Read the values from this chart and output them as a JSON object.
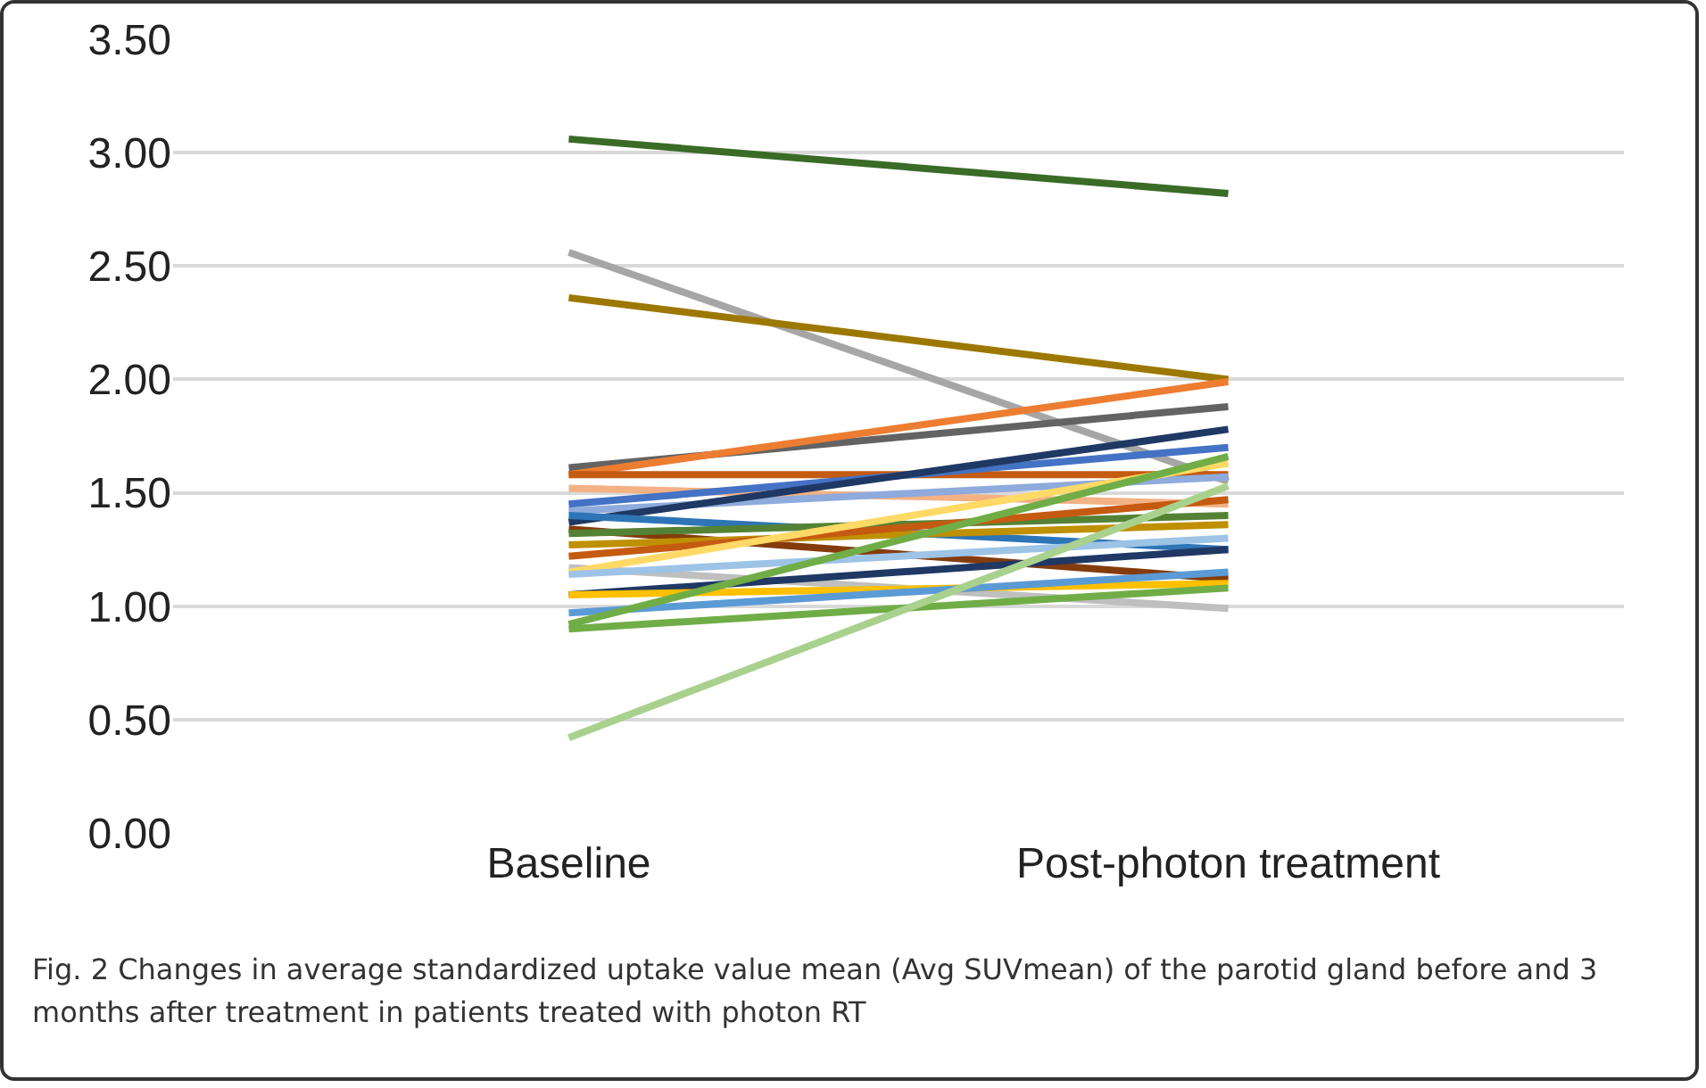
{
  "chart_data": {
    "type": "line",
    "categories": [
      "Baseline",
      "Post-photon treatment"
    ],
    "series": [
      {
        "color": "#3a6b27",
        "values": [
          3.06,
          2.82
        ]
      },
      {
        "color": "#a6a6a6",
        "values": [
          2.56,
          1.55
        ]
      },
      {
        "color": "#9c7800",
        "values": [
          2.36,
          2.0
        ]
      },
      {
        "color": "#636363",
        "values": [
          1.61,
          1.88
        ]
      },
      {
        "color": "#ed7d31",
        "values": [
          1.58,
          1.99
        ]
      },
      {
        "color": "#c55a11",
        "values": [
          1.58,
          1.58
        ]
      },
      {
        "color": "#f4b183",
        "values": [
          1.52,
          1.45
        ]
      },
      {
        "color": "#8faadc",
        "values": [
          1.42,
          1.57
        ]
      },
      {
        "color": "#4472c4",
        "values": [
          1.45,
          1.7
        ]
      },
      {
        "color": "#1f3864",
        "values": [
          1.37,
          1.78
        ]
      },
      {
        "color": "#2e75b6",
        "values": [
          1.4,
          1.25
        ]
      },
      {
        "color": "#843c0c",
        "values": [
          1.34,
          1.12
        ]
      },
      {
        "color": "#548235",
        "values": [
          1.32,
          1.4
        ]
      },
      {
        "color": "#bf9000",
        "values": [
          1.27,
          1.36
        ]
      },
      {
        "color": "#c55a11",
        "values": [
          1.22,
          1.47
        ]
      },
      {
        "color": "#bfbfbf",
        "values": [
          1.17,
          0.99
        ]
      },
      {
        "color": "#ffd966",
        "values": [
          1.15,
          1.63
        ]
      },
      {
        "color": "#9dc3e6",
        "values": [
          1.14,
          1.3
        ]
      },
      {
        "color": "#1f3864",
        "values": [
          1.05,
          1.25
        ]
      },
      {
        "color": "#ffc000",
        "values": [
          1.05,
          1.1
        ]
      },
      {
        "color": "#5b9bd5",
        "values": [
          0.97,
          1.15
        ]
      },
      {
        "color": "#70ad47",
        "values": [
          0.92,
          1.66
        ]
      },
      {
        "color": "#70ad47",
        "values": [
          0.9,
          1.08
        ]
      },
      {
        "color": "#a9d18e",
        "values": [
          0.42,
          1.53
        ]
      }
    ],
    "ylim": [
      0,
      3.5
    ],
    "yticks": [
      {
        "value": 0,
        "label": "0.00"
      },
      {
        "value": 0.5,
        "label": "0.50"
      },
      {
        "value": 1,
        "label": "1.00"
      },
      {
        "value": 1.5,
        "label": "1.50"
      },
      {
        "value": 2,
        "label": "2.00"
      },
      {
        "value": 2.5,
        "label": "2.50"
      },
      {
        "value": 3,
        "label": "3.00"
      },
      {
        "value": 3.5,
        "label": "3.50"
      }
    ],
    "grid": "y",
    "marker": "none",
    "line_style": "solid",
    "annotations": [
      "Fig. 2 Changes in average standardized uptake value mean (Avg SUVmean) of the parotid gland before and 3 months after treatment in patients treated with photon RT"
    ]
  }
}
